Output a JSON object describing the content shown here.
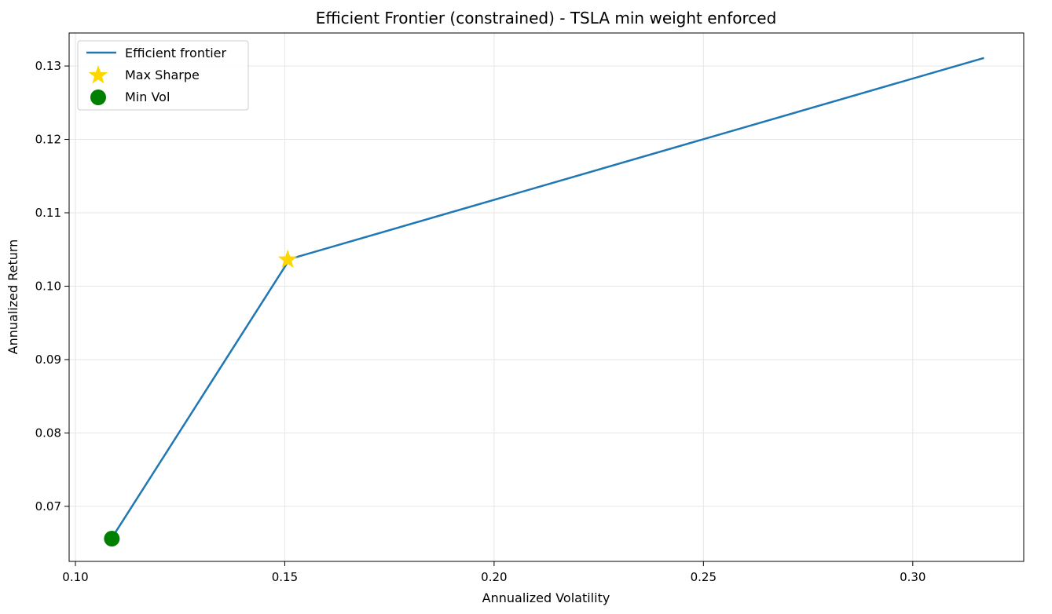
{
  "chart_data": {
    "type": "line",
    "title": "Efficient Frontier (constrained) - TSLA min weight enforced",
    "xlabel": "Annualized Volatility",
    "ylabel": "Annualized Return",
    "xlim": [
      0.0985,
      0.3265
    ],
    "ylim": [
      0.0625,
      0.1345
    ],
    "xticks": [
      0.1,
      0.15,
      0.2,
      0.25,
      0.3
    ],
    "xtick_labels": [
      "0.10",
      "0.15",
      "0.20",
      "0.25",
      "0.30"
    ],
    "yticks": [
      0.07,
      0.08,
      0.09,
      0.1,
      0.11,
      0.12,
      0.13
    ],
    "ytick_labels": [
      "0.07",
      "0.08",
      "0.09",
      "0.10",
      "0.11",
      "0.12",
      "0.13"
    ],
    "grid": true,
    "legend_position": "top-left",
    "series": [
      {
        "name": "Efficient frontier",
        "kind": "line",
        "color": "#1f77b4",
        "x": [
          0.1087,
          0.1512,
          0.317
        ],
        "y": [
          0.0657,
          0.1037,
          0.1311
        ]
      },
      {
        "name": "Max Sharpe",
        "kind": "marker",
        "marker": "star",
        "color": "#ffd700",
        "x": [
          0.1507
        ],
        "y": [
          0.1036
        ]
      },
      {
        "name": "Min Vol",
        "kind": "marker",
        "marker": "circle",
        "color": "#008000",
        "x": [
          0.1087
        ],
        "y": [
          0.0656
        ]
      }
    ]
  }
}
